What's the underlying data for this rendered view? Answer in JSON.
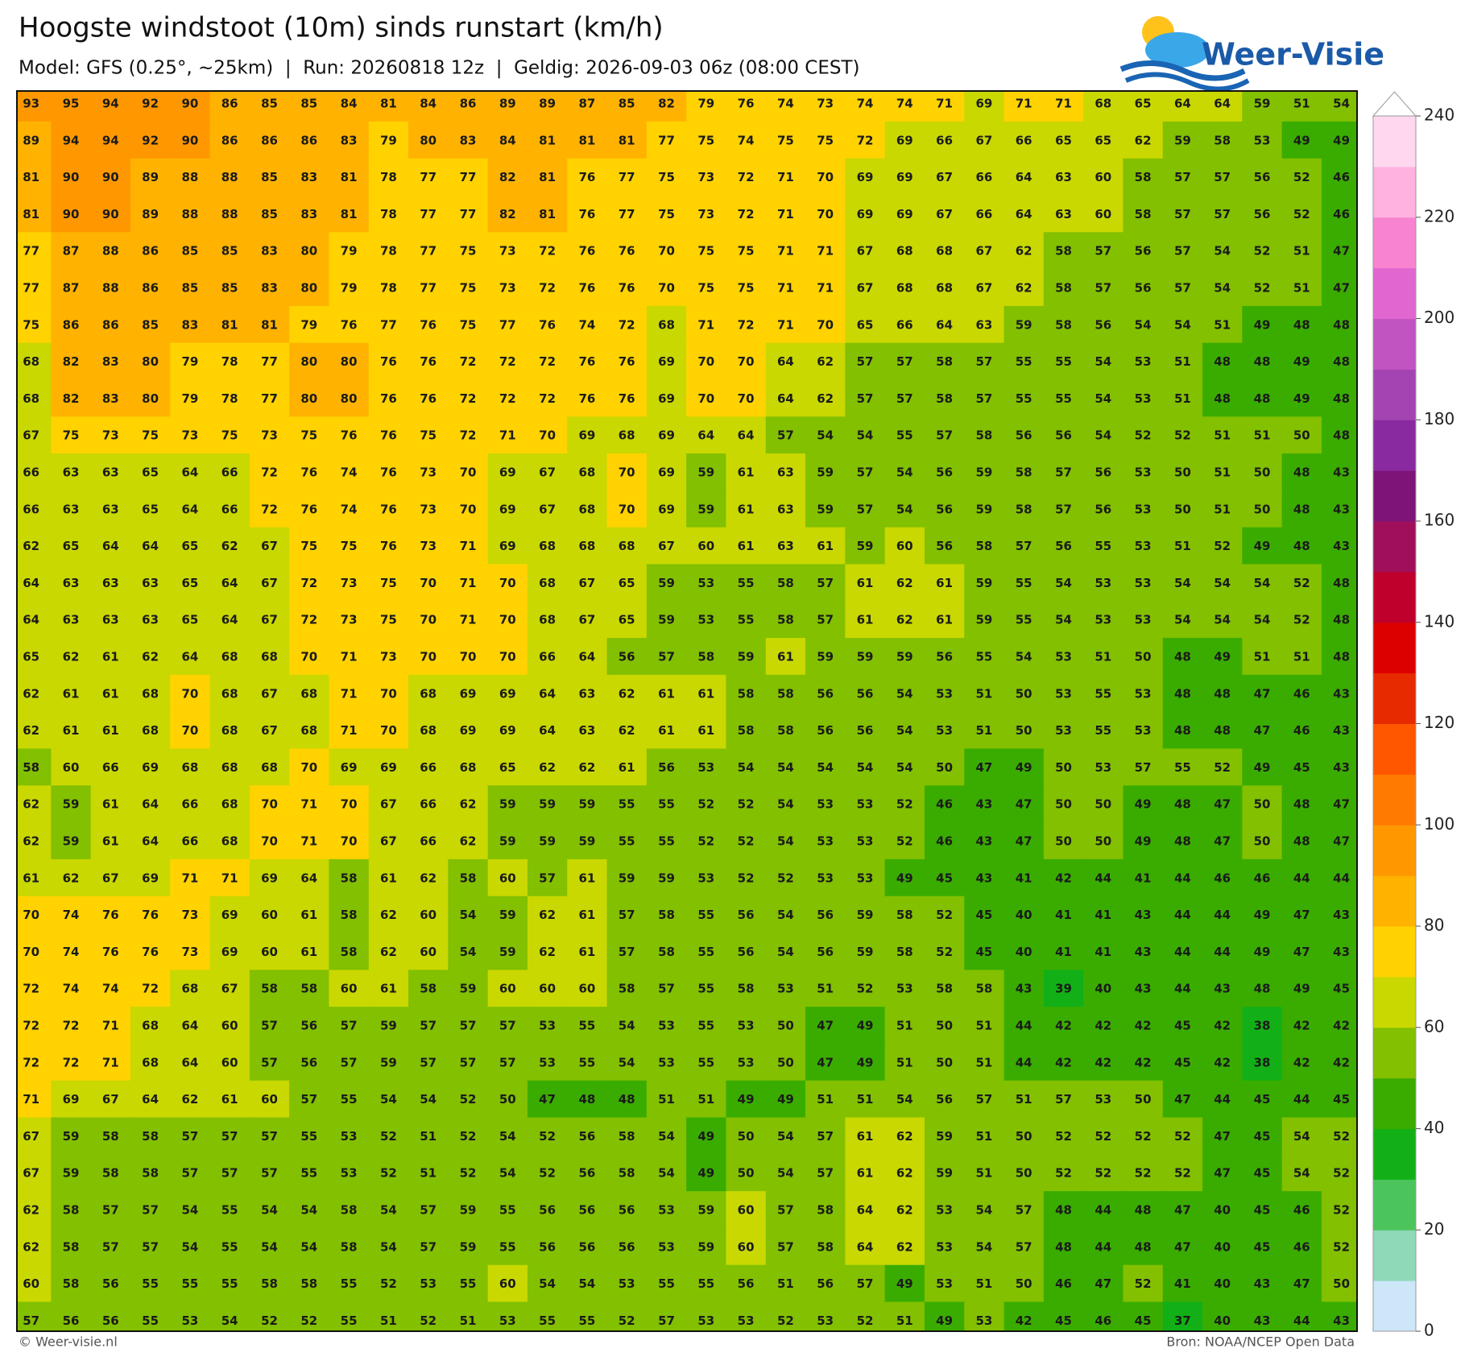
{
  "header": {
    "title": "Hoogste windstoot (10m) sinds runstart (km/h)",
    "subtitle": "Model: GFS (0.25°, ~25km)  |  Run: 20260818 12z  |  Geldig: 2026-09-03 06z (08:00 CEST)",
    "logo": "Weer-Visie"
  },
  "grid": {
    "rows": [
      [
        93,
        95,
        94,
        92,
        90,
        86,
        85,
        85,
        84,
        81,
        84,
        86,
        89,
        89,
        87,
        85,
        82,
        79,
        76,
        74,
        73,
        74,
        74,
        71,
        69,
        71,
        71,
        68,
        65,
        64,
        64,
        59,
        51,
        54
      ],
      [
        89,
        94,
        94,
        92,
        90,
        86,
        86,
        86,
        83,
        79,
        80,
        83,
        84,
        81,
        81,
        81,
        77,
        75,
        74,
        75,
        75,
        72,
        69,
        66,
        67,
        66,
        65,
        65,
        62,
        59,
        58,
        53,
        49,
        49
      ],
      [
        81,
        90,
        90,
        89,
        88,
        88,
        85,
        83,
        81,
        78,
        77,
        77,
        82,
        81,
        76,
        77,
        75,
        73,
        72,
        71,
        70,
        69,
        69,
        67,
        66,
        64,
        63,
        60,
        58,
        57,
        57,
        56,
        52,
        46
      ],
      [
        81,
        90,
        90,
        89,
        88,
        88,
        85,
        83,
        81,
        78,
        77,
        77,
        82,
        81,
        76,
        77,
        75,
        73,
        72,
        71,
        70,
        69,
        69,
        67,
        66,
        64,
        63,
        60,
        58,
        57,
        57,
        56,
        52,
        46
      ],
      [
        77,
        87,
        88,
        86,
        85,
        85,
        83,
        80,
        79,
        78,
        77,
        75,
        73,
        72,
        76,
        76,
        70,
        75,
        75,
        71,
        71,
        67,
        68,
        68,
        67,
        62,
        58,
        57,
        56,
        57,
        54,
        52,
        51,
        47
      ],
      [
        77,
        87,
        88,
        86,
        85,
        85,
        83,
        80,
        79,
        78,
        77,
        75,
        73,
        72,
        76,
        76,
        70,
        75,
        75,
        71,
        71,
        67,
        68,
        68,
        67,
        62,
        58,
        57,
        56,
        57,
        54,
        52,
        51,
        47
      ],
      [
        75,
        86,
        86,
        85,
        83,
        81,
        81,
        79,
        76,
        77,
        76,
        75,
        77,
        76,
        74,
        72,
        68,
        71,
        72,
        71,
        70,
        65,
        66,
        64,
        63,
        59,
        58,
        56,
        54,
        54,
        51,
        49,
        48,
        48
      ],
      [
        68,
        82,
        83,
        80,
        79,
        78,
        77,
        80,
        80,
        76,
        76,
        72,
        72,
        72,
        76,
        76,
        69,
        70,
        70,
        64,
        62,
        57,
        57,
        58,
        57,
        55,
        55,
        54,
        53,
        51,
        48,
        48,
        49,
        48
      ],
      [
        68,
        82,
        83,
        80,
        79,
        78,
        77,
        80,
        80,
        76,
        76,
        72,
        72,
        72,
        76,
        76,
        69,
        70,
        70,
        64,
        62,
        57,
        57,
        58,
        57,
        55,
        55,
        54,
        53,
        51,
        48,
        48,
        49,
        48
      ],
      [
        67,
        75,
        73,
        75,
        73,
        75,
        73,
        75,
        76,
        76,
        75,
        72,
        71,
        70,
        69,
        68,
        69,
        64,
        64,
        57,
        54,
        54,
        55,
        57,
        58,
        56,
        56,
        54,
        52,
        52,
        51,
        51,
        50,
        48
      ],
      [
        66,
        63,
        63,
        65,
        64,
        66,
        72,
        76,
        74,
        76,
        73,
        70,
        69,
        67,
        68,
        70,
        69,
        59,
        61,
        63,
        59,
        57,
        54,
        56,
        59,
        58,
        57,
        56,
        53,
        50,
        51,
        50,
        48,
        43
      ],
      [
        66,
        63,
        63,
        65,
        64,
        66,
        72,
        76,
        74,
        76,
        73,
        70,
        69,
        67,
        68,
        70,
        69,
        59,
        61,
        63,
        59,
        57,
        54,
        56,
        59,
        58,
        57,
        56,
        53,
        50,
        51,
        50,
        48,
        43
      ],
      [
        62,
        65,
        64,
        64,
        65,
        62,
        67,
        75,
        75,
        76,
        73,
        71,
        69,
        68,
        68,
        68,
        67,
        60,
        61,
        63,
        61,
        59,
        60,
        56,
        58,
        57,
        56,
        55,
        53,
        51,
        52,
        49,
        48,
        43
      ],
      [
        64,
        63,
        63,
        63,
        65,
        64,
        67,
        72,
        73,
        75,
        70,
        71,
        70,
        68,
        67,
        65,
        59,
        53,
        55,
        58,
        57,
        61,
        62,
        61,
        59,
        55,
        54,
        53,
        53,
        54,
        54,
        54,
        52,
        48
      ],
      [
        64,
        63,
        63,
        63,
        65,
        64,
        67,
        72,
        73,
        75,
        70,
        71,
        70,
        68,
        67,
        65,
        59,
        53,
        55,
        58,
        57,
        61,
        62,
        61,
        59,
        55,
        54,
        53,
        53,
        54,
        54,
        54,
        52,
        48
      ],
      [
        65,
        62,
        61,
        62,
        64,
        68,
        68,
        70,
        71,
        73,
        70,
        70,
        70,
        66,
        64,
        56,
        57,
        58,
        59,
        61,
        59,
        59,
        59,
        56,
        55,
        54,
        53,
        51,
        50,
        48,
        49,
        51,
        51,
        48
      ],
      [
        62,
        61,
        61,
        68,
        70,
        68,
        67,
        68,
        71,
        70,
        68,
        69,
        69,
        64,
        63,
        62,
        61,
        61,
        58,
        58,
        56,
        56,
        54,
        53,
        51,
        50,
        53,
        55,
        53,
        48,
        48,
        47,
        46,
        43
      ],
      [
        62,
        61,
        61,
        68,
        70,
        68,
        67,
        68,
        71,
        70,
        68,
        69,
        69,
        64,
        63,
        62,
        61,
        61,
        58,
        58,
        56,
        56,
        54,
        53,
        51,
        50,
        53,
        55,
        53,
        48,
        48,
        47,
        46,
        43
      ],
      [
        58,
        60,
        66,
        69,
        68,
        68,
        68,
        70,
        69,
        69,
        66,
        68,
        65,
        62,
        62,
        61,
        56,
        53,
        54,
        54,
        54,
        54,
        54,
        50,
        47,
        49,
        50,
        53,
        57,
        55,
        52,
        49,
        45,
        43
      ],
      [
        62,
        59,
        61,
        64,
        66,
        68,
        70,
        71,
        70,
        67,
        66,
        62,
        59,
        59,
        59,
        55,
        55,
        52,
        52,
        54,
        53,
        53,
        52,
        46,
        43,
        47,
        50,
        50,
        49,
        48,
        47,
        50,
        48,
        47
      ],
      [
        62,
        59,
        61,
        64,
        66,
        68,
        70,
        71,
        70,
        67,
        66,
        62,
        59,
        59,
        59,
        55,
        55,
        52,
        52,
        54,
        53,
        53,
        52,
        46,
        43,
        47,
        50,
        50,
        49,
        48,
        47,
        50,
        48,
        47
      ],
      [
        61,
        62,
        67,
        69,
        71,
        71,
        69,
        64,
        58,
        61,
        62,
        58,
        60,
        57,
        61,
        59,
        59,
        53,
        52,
        52,
        53,
        53,
        49,
        45,
        43,
        41,
        42,
        44,
        41,
        44,
        46,
        46,
        44,
        44
      ],
      [
        70,
        74,
        76,
        76,
        73,
        69,
        60,
        61,
        58,
        62,
        60,
        54,
        59,
        62,
        61,
        57,
        58,
        55,
        56,
        54,
        56,
        59,
        58,
        52,
        45,
        40,
        41,
        41,
        43,
        44,
        44,
        49,
        47,
        43
      ],
      [
        70,
        74,
        76,
        76,
        73,
        69,
        60,
        61,
        58,
        62,
        60,
        54,
        59,
        62,
        61,
        57,
        58,
        55,
        56,
        54,
        56,
        59,
        58,
        52,
        45,
        40,
        41,
        41,
        43,
        44,
        44,
        49,
        47,
        43
      ],
      [
        72,
        74,
        74,
        72,
        68,
        67,
        58,
        58,
        60,
        61,
        58,
        59,
        60,
        60,
        60,
        58,
        57,
        55,
        58,
        53,
        51,
        52,
        53,
        58,
        58,
        43,
        39,
        40,
        43,
        44,
        43,
        48,
        49,
        45
      ],
      [
        72,
        72,
        71,
        68,
        64,
        60,
        57,
        56,
        57,
        59,
        57,
        57,
        57,
        53,
        55,
        54,
        53,
        55,
        53,
        50,
        47,
        49,
        51,
        50,
        51,
        44,
        42,
        42,
        42,
        45,
        42,
        38,
        42,
        42
      ],
      [
        72,
        72,
        71,
        68,
        64,
        60,
        57,
        56,
        57,
        59,
        57,
        57,
        57,
        53,
        55,
        54,
        53,
        55,
        53,
        50,
        47,
        49,
        51,
        50,
        51,
        44,
        42,
        42,
        42,
        45,
        42,
        38,
        42,
        42
      ],
      [
        71,
        69,
        67,
        64,
        62,
        61,
        60,
        57,
        55,
        54,
        54,
        52,
        50,
        47,
        48,
        48,
        51,
        51,
        49,
        49,
        51,
        51,
        54,
        56,
        57,
        51,
        57,
        53,
        50,
        47,
        44,
        45,
        44,
        45
      ],
      [
        67,
        59,
        58,
        58,
        57,
        57,
        57,
        55,
        53,
        52,
        51,
        52,
        54,
        52,
        56,
        58,
        54,
        49,
        50,
        54,
        57,
        61,
        62,
        59,
        51,
        50,
        52,
        52,
        52,
        52,
        47,
        45,
        54,
        52
      ],
      [
        67,
        59,
        58,
        58,
        57,
        57,
        57,
        55,
        53,
        52,
        51,
        52,
        54,
        52,
        56,
        58,
        54,
        49,
        50,
        54,
        57,
        61,
        62,
        59,
        51,
        50,
        52,
        52,
        52,
        52,
        47,
        45,
        54,
        52
      ],
      [
        62,
        58,
        57,
        57,
        54,
        55,
        54,
        54,
        58,
        54,
        57,
        59,
        55,
        56,
        56,
        56,
        53,
        59,
        60,
        57,
        58,
        64,
        62,
        53,
        54,
        57,
        48,
        44,
        48,
        47,
        40,
        45,
        46,
        52
      ],
      [
        62,
        58,
        57,
        57,
        54,
        55,
        54,
        54,
        58,
        54,
        57,
        59,
        55,
        56,
        56,
        56,
        53,
        59,
        60,
        57,
        58,
        64,
        62,
        53,
        54,
        57,
        48,
        44,
        48,
        47,
        40,
        45,
        46,
        52
      ],
      [
        60,
        58,
        56,
        55,
        55,
        55,
        58,
        58,
        55,
        52,
        53,
        55,
        60,
        54,
        54,
        53,
        55,
        55,
        56,
        51,
        56,
        57,
        49,
        53,
        51,
        50,
        46,
        47,
        52,
        41,
        40,
        43,
        47,
        50
      ],
      [
        57,
        56,
        56,
        55,
        53,
        54,
        52,
        52,
        55,
        51,
        52,
        51,
        53,
        55,
        55,
        52,
        57,
        53,
        53,
        52,
        53,
        52,
        51,
        49,
        53,
        42,
        45,
        46,
        45,
        37,
        40,
        43,
        44,
        43
      ]
    ]
  },
  "colorbar": {
    "ticks": [
      0,
      20,
      40,
      60,
      80,
      100,
      120,
      140,
      160,
      180,
      200,
      220,
      240
    ],
    "colors": [
      "#cde6f8",
      "#8fd8b8",
      "#4cc45c",
      "#12b016",
      "#3aac00",
      "#82c000",
      "#c9d800",
      "#ffd200",
      "#ffb300",
      "#ff9800",
      "#ff7a00",
      "#ff5600",
      "#e82a00",
      "#dc0000",
      "#c0002c",
      "#a0105a",
      "#7e1478",
      "#8a2aa0",
      "#a444b2",
      "#c254c2",
      "#e266d0",
      "#f883d0",
      "#ffb2e0",
      "#ffd8f0"
    ]
  },
  "footer": {
    "left": "© Weer-visie.nl",
    "right": "Bron: NOAA/NCEP Open Data"
  }
}
